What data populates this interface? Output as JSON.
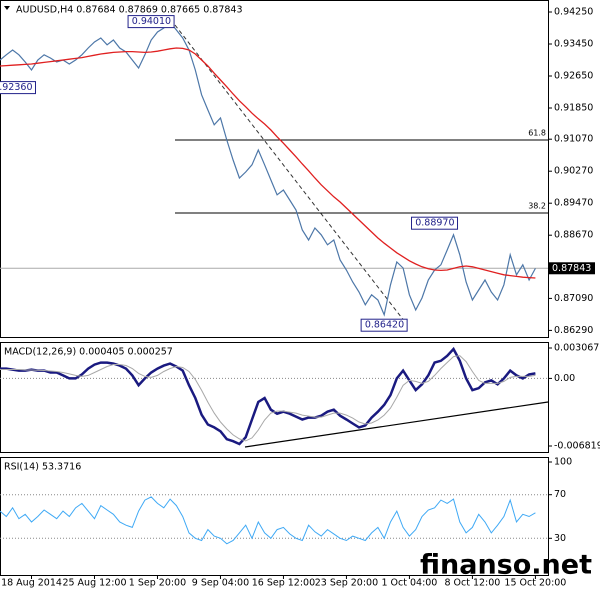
{
  "chart_data": [
    {
      "type": "line",
      "title": "AUDUSD,H4  0.87684 0.87869 0.87665 0.87843",
      "grid": false,
      "xlim": [
        0,
        87
      ],
      "ylim": [
        0.86125,
        0.9455
      ],
      "yticks": [
        {
          "value": 0.9425,
          "label": "0.94250"
        },
        {
          "value": 0.9345,
          "label": "0.93450"
        },
        {
          "value": 0.9265,
          "label": "0.92650"
        },
        {
          "value": 0.9185,
          "label": "0.91850"
        },
        {
          "value": 0.9107,
          "label": "0.91070"
        },
        {
          "value": 0.9027,
          "label": "0.90270"
        },
        {
          "value": 0.8947,
          "label": "0.89470"
        },
        {
          "value": 0.8867,
          "label": "0.88670"
        },
        {
          "value": 0.8709,
          "label": "0.87090"
        },
        {
          "value": 0.8629,
          "label": "0.86290"
        }
      ],
      "series": [
        {
          "color": "#4d77a8",
          "values": [
            0.9305,
            0.9318,
            0.933,
            0.9318,
            0.93,
            0.928,
            0.9305,
            0.9318,
            0.931,
            0.93,
            0.9305,
            0.9295,
            0.9305,
            0.9318,
            0.9335,
            0.935,
            0.936,
            0.9343,
            0.9355,
            0.9335,
            0.9325,
            0.9305,
            0.9285,
            0.9318,
            0.9355,
            0.9375,
            0.9385,
            0.94,
            0.938,
            0.936,
            0.933,
            0.928,
            0.9218,
            0.918,
            0.9143,
            0.916,
            0.9105,
            0.9055,
            0.901,
            0.9025,
            0.9043,
            0.908,
            0.9043,
            0.9005,
            0.8968,
            0.898,
            0.8955,
            0.893,
            0.888,
            0.8855,
            0.8885,
            0.8868,
            0.8843,
            0.8855,
            0.8805,
            0.878,
            0.875,
            0.8725,
            0.8693,
            0.8718,
            0.8705,
            0.8668,
            0.8743,
            0.88,
            0.8785,
            0.8718,
            0.868,
            0.871,
            0.8755,
            0.878,
            0.8793,
            0.883,
            0.8868,
            0.8818,
            0.875,
            0.8705,
            0.873,
            0.8755,
            0.8725,
            0.8705,
            0.8743,
            0.8818,
            0.8768,
            0.8793,
            0.8755,
            0.8784
          ]
        },
        {
          "color": "#e02020",
          "values": [
            0.929,
            0.9291,
            0.9292,
            0.9293,
            0.9294,
            0.9295,
            0.9297,
            0.9299,
            0.9301,
            0.9303,
            0.9305,
            0.9307,
            0.9309,
            0.9311,
            0.9314,
            0.9317,
            0.932,
            0.9322,
            0.9324,
            0.9325,
            0.9326,
            0.9326,
            0.9325,
            0.9324,
            0.9325,
            0.9327,
            0.933,
            0.9333,
            0.9335,
            0.9334,
            0.933,
            0.932,
            0.9305,
            0.929,
            0.9272,
            0.9255,
            0.9238,
            0.922,
            0.9203,
            0.9188,
            0.9172,
            0.9158,
            0.9145,
            0.913,
            0.9113,
            0.9097,
            0.908,
            0.9063,
            0.9045,
            0.9028,
            0.901,
            0.8993,
            0.8978,
            0.8963,
            0.895,
            0.8935,
            0.892,
            0.8905,
            0.889,
            0.8875,
            0.886,
            0.8847,
            0.8835,
            0.8823,
            0.8813,
            0.8803,
            0.8795,
            0.8788,
            0.8783,
            0.878,
            0.8779,
            0.878,
            0.8784,
            0.8788,
            0.879,
            0.8788,
            0.8784,
            0.878,
            0.8776,
            0.8772,
            0.8768,
            0.8766,
            0.8764,
            0.8762,
            0.8761,
            0.876
          ]
        }
      ],
      "levels": [
        {
          "label": "61.8",
          "value": 0.9105
        },
        {
          "label": "38.2",
          "value": 0.89225
        }
      ],
      "annotations": [
        {
          "label": "0.94010",
          "x": 27,
          "value": 0.9401
        },
        {
          "label": "0.86420",
          "x": 64,
          "value": 0.8642
        },
        {
          "label": "0.88970",
          "x": 72,
          "value": 0.8897
        },
        {
          "label": "0.92360",
          "x": 5,
          "value": 0.9236
        }
      ],
      "last": {
        "value": 0.87843,
        "label": "0.87843"
      }
    },
    {
      "type": "line",
      "title": "MACD(12,26,9) 0.000405 0.000257",
      "grid": true,
      "xlim": [
        0,
        87
      ],
      "ylim": [
        -0.006819,
        0.003067
      ],
      "yticks": [
        0.003067,
        {
          "value": 0,
          "label": "0.00"
        },
        -0.006819
      ],
      "series": [
        {
          "color": "#1a1a80",
          "values": [
            0.00099,
            0.00099,
            0.00089,
            0.00079,
            0.00079,
            0.00089,
            0.00079,
            0.00079,
            0.0006,
            0.0006,
            0.0003,
            0.0,
            0.0,
            0.0004,
            0.00099,
            0.00139,
            0.00159,
            0.00159,
            0.00149,
            0.00129,
            0.00099,
            0.0003,
            -0.00069,
            0.0,
            0.0006,
            0.00099,
            0.00129,
            0.00149,
            0.00119,
            0.00079,
            -0.00069,
            -0.00198,
            -0.00366,
            -0.00465,
            -0.00494,
            -0.00534,
            -0.00613,
            -0.00633,
            -0.00662,
            -0.00593,
            -0.00415,
            -0.00237,
            -0.00198,
            -0.00316,
            -0.00356,
            -0.00336,
            -0.00356,
            -0.00385,
            -0.00415,
            -0.00395,
            -0.00395,
            -0.00376,
            -0.00336,
            -0.00316,
            -0.00376,
            -0.00415,
            -0.00455,
            -0.00494,
            -0.00474,
            -0.00395,
            -0.00336,
            -0.00267,
            -0.00168,
            0.0,
            0.00079,
            -0.0002,
            -0.00118,
            -0.00059,
            0.0003,
            0.00159,
            0.00178,
            0.00228,
            0.00297,
            0.00178,
            0.0,
            -0.00118,
            -0.00099,
            -0.00039,
            -0.0002,
            -0.00059,
            0.0,
            0.00079,
            0.0003,
            0.0,
            0.0004,
            0.0005
          ]
        },
        {
          "color": "#a8a8a8",
          "values": [
            0.0009,
            0.0009,
            0.0009,
            0.0009,
            0.00085,
            0.00085,
            0.00083,
            0.0008,
            0.00075,
            0.0007,
            0.0006,
            0.00045,
            0.0003,
            0.0002,
            0.0003,
            0.0006,
            0.0009,
            0.0012,
            0.0014,
            0.0014,
            0.0013,
            0.001,
            0.0005,
            0.0002,
            0.0001,
            0.0003,
            0.0007,
            0.001,
            0.0012,
            0.0011,
            0.0007,
            -0.0001,
            -0.0012,
            -0.0024,
            -0.0035,
            -0.0044,
            -0.0051,
            -0.0057,
            -0.0061,
            -0.0063,
            -0.006,
            -0.0052,
            -0.0042,
            -0.0035,
            -0.0033,
            -0.0033,
            -0.0034,
            -0.0035,
            -0.0037,
            -0.0038,
            -0.0039,
            -0.0039,
            -0.0037,
            -0.0035,
            -0.0035,
            -0.0037,
            -0.004,
            -0.0044,
            -0.0046,
            -0.0045,
            -0.0042,
            -0.0037,
            -0.003,
            -0.0019,
            -0.0007,
            -0.0002,
            -0.0003,
            -0.0005,
            -0.0003,
            0.0003,
            0.001,
            0.0016,
            0.0022,
            0.0023,
            0.0017,
            0.0007,
            -0.0002,
            -0.0005,
            -0.0005,
            -0.0005,
            -0.0003,
            0.0001,
            0.0002,
            0.0002,
            0.0002,
            0.0003
          ]
        }
      ]
    },
    {
      "type": "line",
      "title": "RSI(14) 53.3716",
      "grid": true,
      "xlim": [
        0,
        87
      ],
      "ylim": [
        0,
        100
      ],
      "yticks": [
        100,
        70,
        30
      ],
      "xticks": [
        {
          "value": 5,
          "label": "18 Aug 2014"
        },
        {
          "value": 15,
          "label": "25 Aug 12:00"
        },
        {
          "value": 25,
          "label": "1 Sep 20:00"
        },
        {
          "value": 35,
          "label": "9 Sep 04:00"
        },
        {
          "value": 45,
          "label": "16 Sep 12:00"
        },
        {
          "value": 55,
          "label": "23 Sep 20:00"
        },
        {
          "value": 65,
          "label": "1 Oct 04:00"
        },
        {
          "value": 75,
          "label": "8 Oct 12:00"
        },
        {
          "value": 85,
          "label": "15 Oct 20:00"
        }
      ],
      "series": [
        {
          "color": "#3fa9f5",
          "values": [
            55,
            50,
            58,
            48,
            52,
            45,
            50,
            56,
            52,
            48,
            55,
            50,
            58,
            62,
            55,
            48,
            60,
            56,
            52,
            45,
            42,
            40,
            55,
            65,
            68,
            62,
            58,
            66,
            60,
            50,
            35,
            30,
            28,
            38,
            32,
            30,
            25,
            28,
            35,
            42,
            30,
            45,
            35,
            30,
            38,
            40,
            34,
            30,
            28,
            42,
            36,
            32,
            38,
            34,
            30,
            28,
            32,
            30,
            28,
            35,
            40,
            30,
            45,
            55,
            40,
            32,
            38,
            50,
            56,
            58,
            65,
            62,
            66,
            45,
            35,
            40,
            52,
            45,
            35,
            42,
            50,
            65,
            45,
            52,
            50,
            53.3716
          ]
        }
      ]
    }
  ],
  "watermark": "finanso.net"
}
